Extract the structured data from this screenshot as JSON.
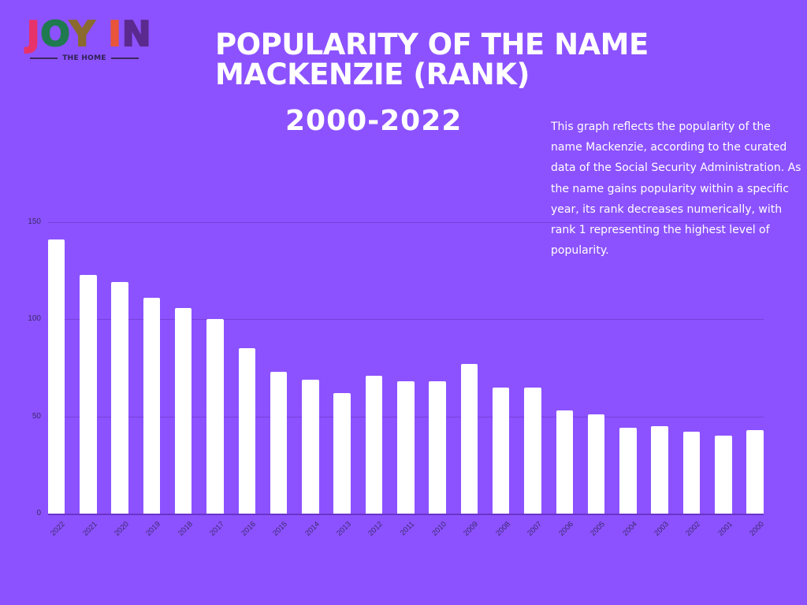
{
  "logo": {
    "letters": [
      {
        "ch": "J",
        "color": "#e8336a"
      },
      {
        "ch": "O",
        "color": "#1f7a4f"
      },
      {
        "ch": "Y",
        "color": "#8a6a2e"
      },
      {
        "ch": " ",
        "color": "#000000"
      },
      {
        "ch": "I",
        "color": "#e8553a"
      },
      {
        "ch": "N",
        "color": "#5b2a8e"
      }
    ],
    "subtitle": "THE HOME"
  },
  "header": {
    "title_line1": "POPULARITY OF THE NAME",
    "title_line2": "MACKENZIE (RANK)",
    "subtitle": "2000-2022"
  },
  "description": "This graph reflects the popularity of the name Mackenzie, according to the curated data of the Social Security Administration. As the name gains popularity within a specific year, its rank decreases numerically, with rank 1 representing the highest level of popularity.",
  "colors": {
    "background": "#8c52ff",
    "bar": "#ffffff",
    "gridline": "#7840dc",
    "tick_text": "#3a2a68"
  },
  "chart_data": {
    "type": "bar",
    "title": "Popularity of the Name Mackenzie (Rank)",
    "subtitle": "2000-2022",
    "xlabel": "",
    "ylabel": "",
    "ylim": [
      0,
      150
    ],
    "yticks": [
      0,
      50,
      100,
      150
    ],
    "grid": true,
    "legend": null,
    "categories": [
      "2022",
      "2021",
      "2020",
      "2019",
      "2018",
      "2017",
      "2016",
      "2015",
      "2014",
      "2013",
      "2012",
      "2011",
      "2010",
      "2009",
      "2008",
      "2007",
      "2006",
      "2005",
      "2004",
      "2003",
      "2002",
      "2001",
      "2000"
    ],
    "values": [
      141,
      123,
      119,
      111,
      106,
      100,
      85,
      73,
      69,
      62,
      71,
      68,
      68,
      77,
      65,
      65,
      53,
      51,
      44,
      45,
      42,
      40,
      43
    ]
  }
}
